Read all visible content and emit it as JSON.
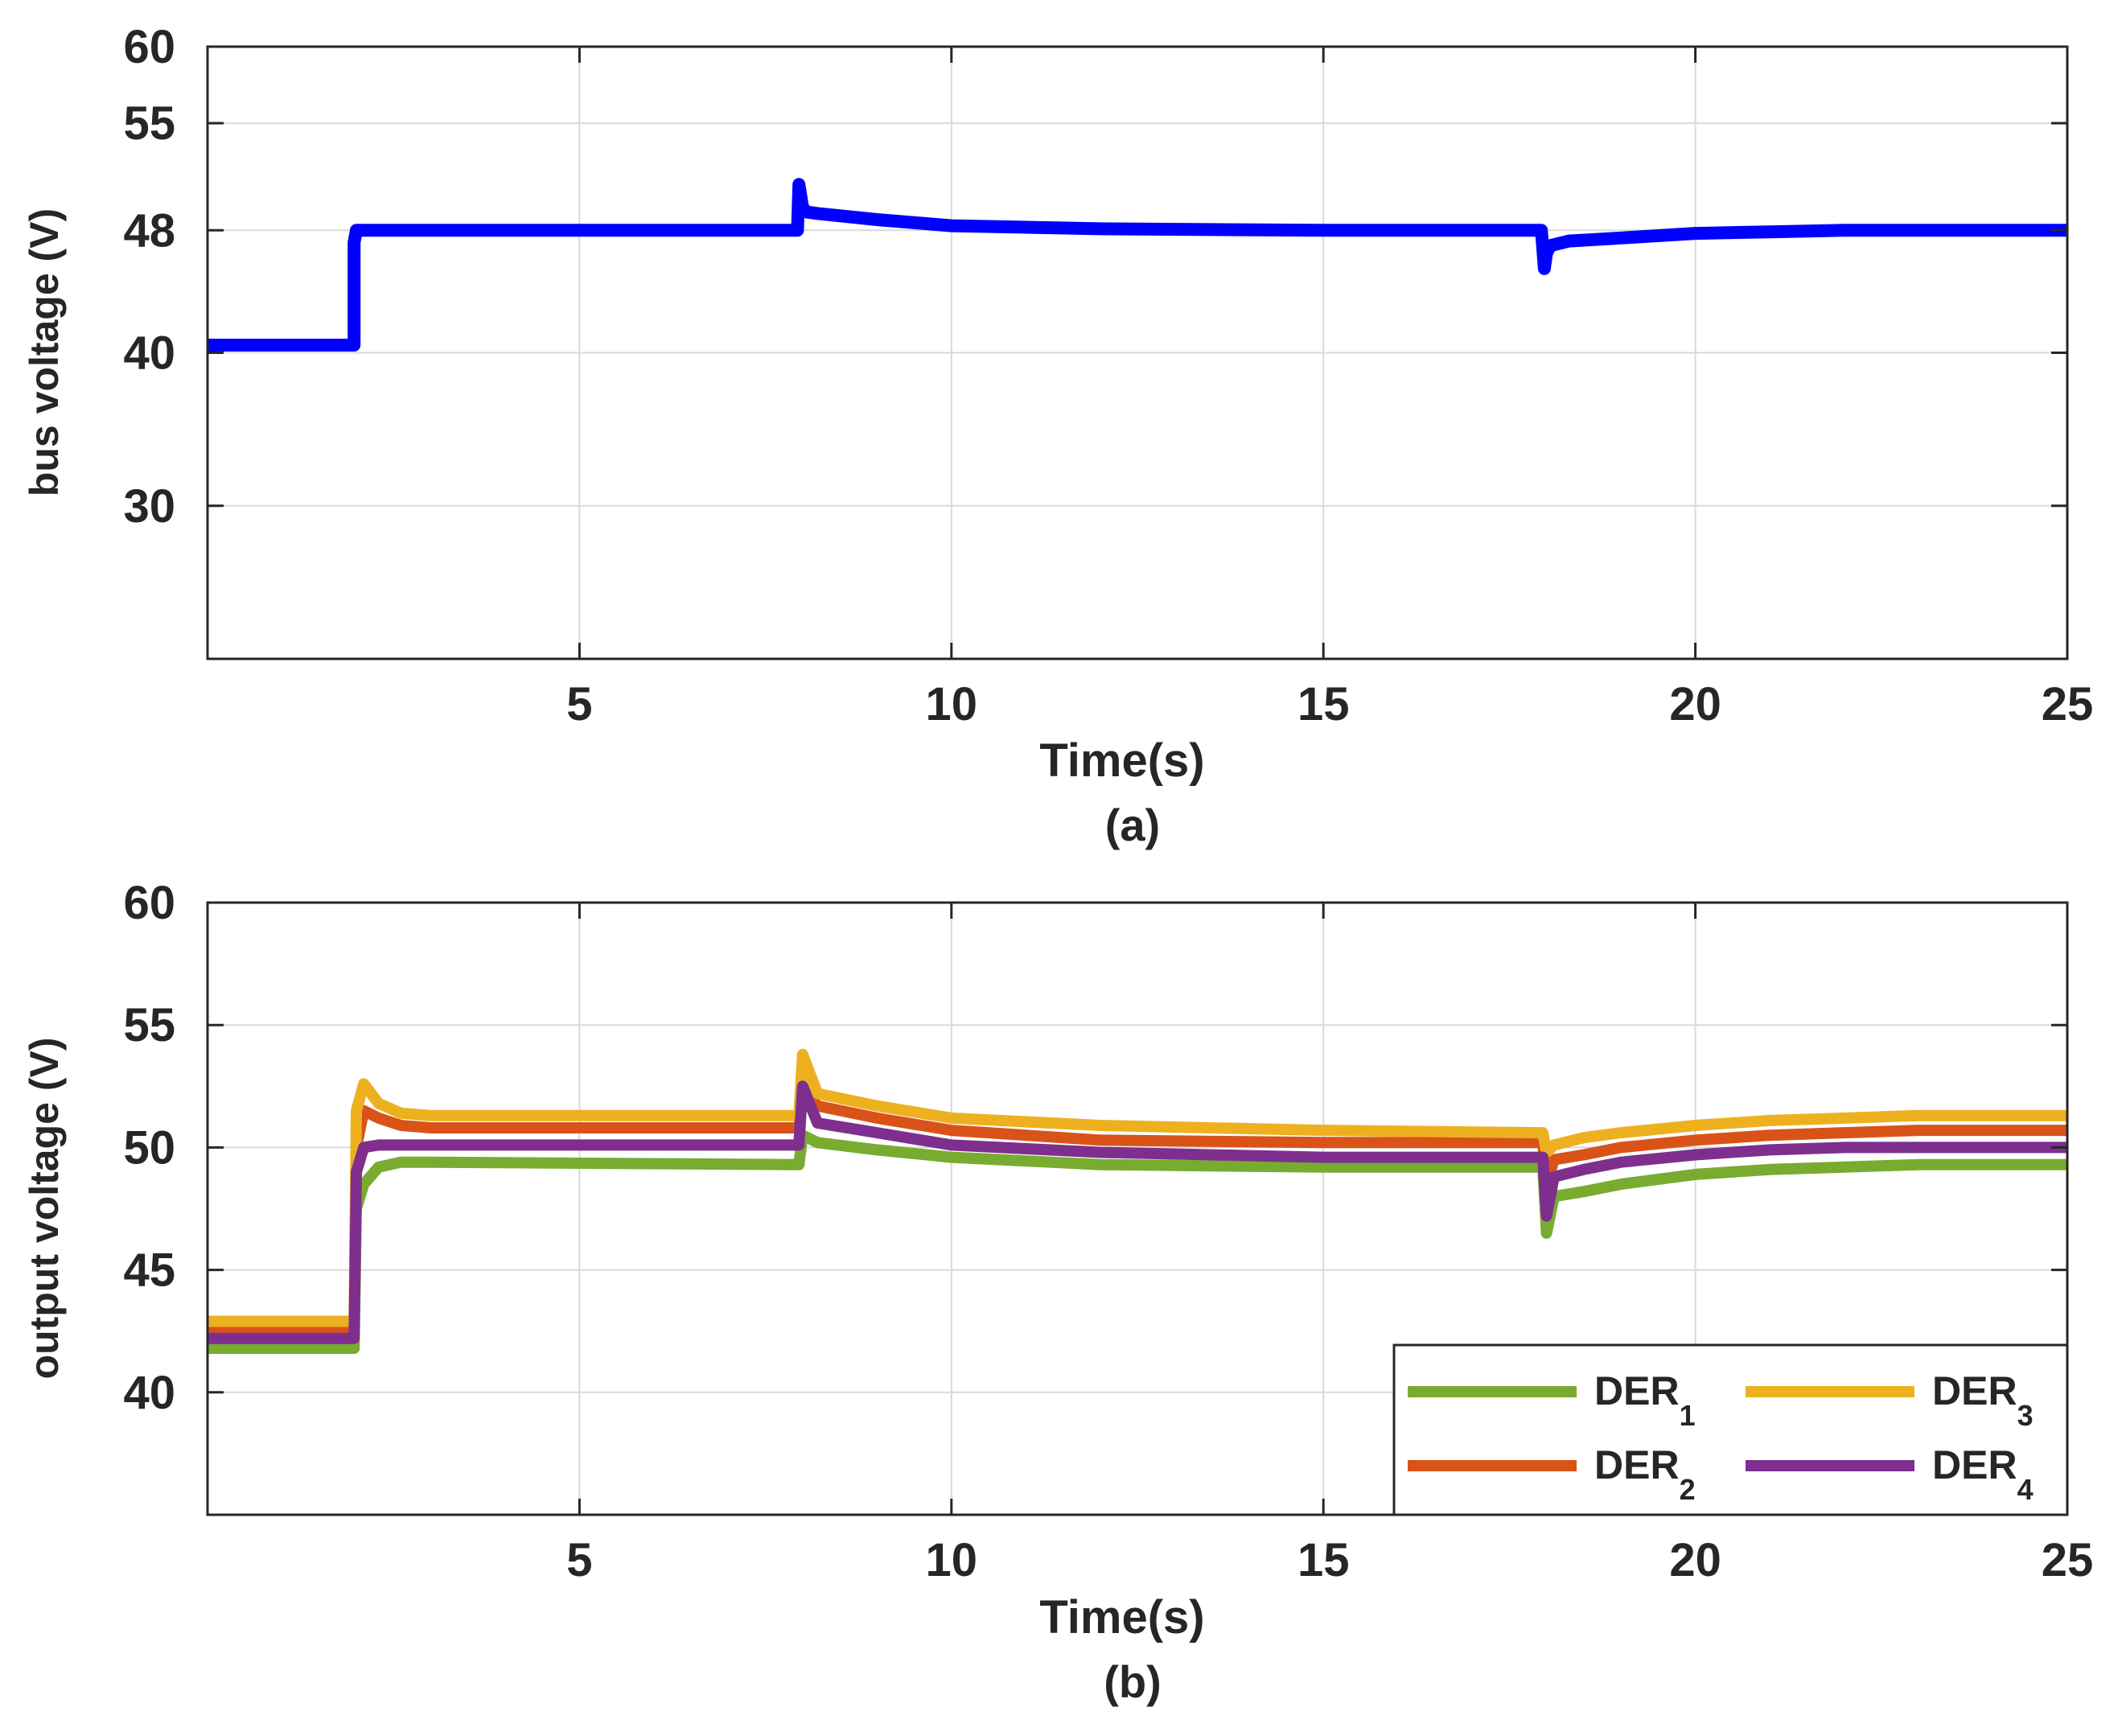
{
  "chart_data": [
    {
      "type": "line",
      "panel_label": "(a)",
      "title": "",
      "xlabel": "Time(s)",
      "ylabel": "bus voltage (V)",
      "xlim": [
        0,
        25
      ],
      "ylim": [
        20,
        60
      ],
      "xticks": [
        5,
        10,
        15,
        20,
        25
      ],
      "xtick_labels": [
        "5",
        "10",
        "15",
        "20",
        "25"
      ],
      "yticks": [
        30,
        40,
        48,
        55,
        60
      ],
      "ytick_labels": [
        "30",
        "40",
        "48",
        "55",
        "60"
      ],
      "grid": true,
      "series": [
        {
          "name": "bus voltage",
          "color": "#0000ff",
          "x": [
            0,
            1.95,
            1.97,
            1.97,
            2.0,
            2.2,
            7.9,
            7.93,
            7.95,
            8.0,
            8.05,
            8.2,
            9,
            10,
            11,
            12,
            15,
            17.9,
            17.93,
            17.97,
            18.0,
            18.05,
            18.3,
            19,
            20,
            21,
            22,
            23,
            25
          ],
          "y": [
            40.5,
            40.5,
            40.5,
            47.2,
            48.0,
            48.0,
            48.0,
            48.0,
            51.0,
            49.5,
            49.2,
            49.1,
            48.7,
            48.3,
            48.2,
            48.1,
            48.0,
            48.0,
            48.0,
            45.5,
            46.5,
            47.0,
            47.3,
            47.5,
            47.8,
            47.9,
            48.0,
            48.0,
            48.0
          ]
        }
      ]
    },
    {
      "type": "line",
      "panel_label": "(b)",
      "title": "",
      "xlabel": "Time(s)",
      "ylabel": "output voltage (V)",
      "xlim": [
        0,
        25
      ],
      "ylim": [
        35,
        60
      ],
      "xticks": [
        5,
        10,
        15,
        20,
        25
      ],
      "xtick_labels": [
        "5",
        "10",
        "15",
        "20",
        "25"
      ],
      "yticks": [
        40,
        45,
        50,
        55,
        60
      ],
      "ytick_labels": [
        "40",
        "45",
        "50",
        "55",
        "60"
      ],
      "grid": true,
      "legend_position": "bottom-right",
      "series": [
        {
          "name": "DER",
          "subscript": "1",
          "color": "#77ac30",
          "x": [
            0,
            1.95,
            1.97,
            2.0,
            2.1,
            2.3,
            2.6,
            3.0,
            7.9,
            7.95,
            8.0,
            8.2,
            9,
            10,
            12,
            15,
            17.9,
            17.95,
            18.0,
            18.1,
            18.5,
            19,
            20,
            21,
            22,
            23,
            25
          ],
          "y": [
            41.8,
            41.8,
            41.8,
            47.5,
            48.5,
            49.2,
            49.4,
            49.4,
            49.3,
            49.3,
            50.5,
            50.2,
            49.9,
            49.6,
            49.3,
            49.2,
            49.2,
            49.2,
            46.5,
            48.0,
            48.2,
            48.5,
            48.9,
            49.1,
            49.2,
            49.3,
            49.3
          ]
        },
        {
          "name": "DER",
          "subscript": "2",
          "color": "#d95319",
          "x": [
            0,
            1.95,
            1.97,
            2.0,
            2.1,
            2.3,
            2.6,
            3.0,
            7.9,
            7.95,
            8.0,
            8.2,
            9,
            10,
            12,
            15,
            17.9,
            17.95,
            18.0,
            18.1,
            18.5,
            19,
            20,
            21,
            22,
            23,
            25
          ],
          "y": [
            42.6,
            42.6,
            42.6,
            50.0,
            51.5,
            51.2,
            50.9,
            50.8,
            50.8,
            50.8,
            52.5,
            51.7,
            51.2,
            50.7,
            50.3,
            50.2,
            50.2,
            50.2,
            48.5,
            49.5,
            49.7,
            50.0,
            50.3,
            50.5,
            50.6,
            50.7,
            50.7
          ]
        },
        {
          "name": "DER",
          "subscript": "3",
          "color": "#edb120",
          "x": [
            0,
            1.95,
            1.97,
            2.0,
            2.1,
            2.3,
            2.6,
            3.0,
            7.9,
            7.95,
            8.0,
            8.2,
            9,
            10,
            12,
            15,
            17.9,
            17.95,
            18.0,
            18.1,
            18.5,
            19,
            20,
            21,
            22,
            23,
            25
          ],
          "y": [
            42.9,
            42.9,
            42.9,
            51.5,
            52.6,
            51.8,
            51.4,
            51.3,
            51.3,
            51.3,
            53.8,
            52.2,
            51.7,
            51.2,
            50.9,
            50.7,
            50.6,
            50.6,
            49.8,
            50.1,
            50.4,
            50.6,
            50.9,
            51.1,
            51.2,
            51.3,
            51.3
          ]
        },
        {
          "name": "DER",
          "subscript": "4",
          "color": "#7e2f8e",
          "x": [
            0,
            1.95,
            1.97,
            2.0,
            2.1,
            2.3,
            2.6,
            3.0,
            7.9,
            7.95,
            8.0,
            8.2,
            9,
            10,
            12,
            15,
            17.9,
            17.95,
            18.0,
            18.1,
            18.5,
            19,
            20,
            21,
            22,
            23,
            25
          ],
          "y": [
            42.2,
            42.2,
            42.2,
            49.0,
            50.0,
            50.1,
            50.1,
            50.1,
            50.1,
            50.1,
            52.5,
            51.0,
            50.6,
            50.1,
            49.8,
            49.6,
            49.6,
            49.6,
            47.2,
            48.8,
            49.1,
            49.4,
            49.7,
            49.9,
            50.0,
            50.0,
            50.0
          ]
        }
      ]
    }
  ]
}
